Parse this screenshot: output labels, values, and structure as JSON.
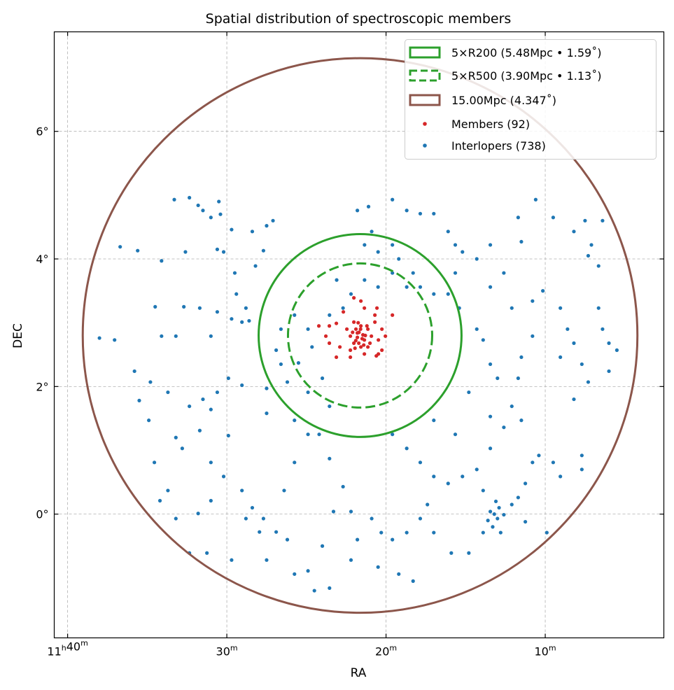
{
  "chart_data": {
    "type": "scatter",
    "title": "Spatial distribution of spectroscopic members",
    "xlabel": "RA",
    "ylabel": "DEC",
    "x_units": "RA minutes past 11h (axis inverted, increasing to the left)",
    "y_units": "degrees",
    "xlim": [
      40.84,
      2.55
    ],
    "ylim": [
      -1.94,
      7.56
    ],
    "grid": true,
    "x_ticks": [
      {
        "value": 40,
        "parts": [
          [
            "11",
            "h"
          ],
          [
            "40",
            "m"
          ]
        ]
      },
      {
        "value": 30,
        "parts": [
          [
            "30",
            "m"
          ]
        ]
      },
      {
        "value": 20,
        "parts": [
          [
            "20",
            "m"
          ]
        ]
      },
      {
        "value": 10,
        "parts": [
          [
            "10",
            "m"
          ]
        ]
      }
    ],
    "y_ticks": [
      {
        "value": 0,
        "label": "0°"
      },
      {
        "value": 2,
        "label": "2°"
      },
      {
        "value": 4,
        "label": "4°"
      },
      {
        "value": 6,
        "label": "6°"
      }
    ],
    "center": {
      "ra_min": 21.63,
      "dec": 2.8
    },
    "circles": [
      {
        "name": "5×R200 (5.48Mpc • 1.59˚)",
        "radius_deg": 1.59,
        "color": "#2ca02c",
        "style": "solid"
      },
      {
        "name": "5×R500 (3.90Mpc • 1.13˚)",
        "radius_deg": 1.13,
        "color": "#2ca02c",
        "style": "dashed"
      },
      {
        "name": "15.00Mpc (4.347˚)",
        "radius_deg": 4.347,
        "color": "#8c564b",
        "style": "solid"
      }
    ],
    "legend_position": "top-right",
    "series": [
      {
        "name": "Members (92)",
        "color": "#d62728",
        "points": [
          [
            22.68,
            3.17
          ],
          [
            22.02,
            3.39
          ],
          [
            21.58,
            3.34
          ],
          [
            21.36,
            3.23
          ],
          [
            20.57,
            3.23
          ],
          [
            19.6,
            3.12
          ],
          [
            23.56,
            2.95
          ],
          [
            23.12,
            2.99
          ],
          [
            22.46,
            2.9
          ],
          [
            22.02,
            3.01
          ],
          [
            21.58,
            2.95
          ],
          [
            21.14,
            2.9
          ],
          [
            20.7,
            3.01
          ],
          [
            20.26,
            2.9
          ],
          [
            22.24,
            2.79
          ],
          [
            21.8,
            2.77
          ],
          [
            21.36,
            2.73
          ],
          [
            20.92,
            2.79
          ],
          [
            20.48,
            2.73
          ],
          [
            20.04,
            2.79
          ],
          [
            23.56,
            2.68
          ],
          [
            22.9,
            2.62
          ],
          [
            22.02,
            2.68
          ],
          [
            21.58,
            2.62
          ],
          [
            21.14,
            2.62
          ],
          [
            20.48,
            2.51
          ],
          [
            23.12,
            2.46
          ],
          [
            22.24,
            2.46
          ],
          [
            21.36,
            2.51
          ],
          [
            20.61,
            2.48
          ],
          [
            20.26,
            2.57
          ],
          [
            21.8,
            2.84
          ],
          [
            21.71,
            2.68
          ],
          [
            21.45,
            2.81
          ],
          [
            21.89,
            2.9
          ],
          [
            24.22,
            2.95
          ],
          [
            23.78,
            2.79
          ],
          [
            22.24,
            2.57
          ],
          [
            21.01,
            2.68
          ],
          [
            20.7,
            3.12
          ],
          [
            21.7,
            2.85
          ],
          [
            21.5,
            2.75
          ],
          [
            21.9,
            2.72
          ],
          [
            21.6,
            2.9
          ],
          [
            21.3,
            2.8
          ],
          [
            22.1,
            2.85
          ],
          [
            21.2,
            2.95
          ],
          [
            21.95,
            2.6
          ],
          [
            21.4,
            2.65
          ],
          [
            21.75,
            3.0
          ]
        ]
      },
      {
        "name": "Interlopers (738)",
        "color": "#1f77b4",
        "points": [
          [
            33.3,
            4.93
          ],
          [
            32.35,
            4.96
          ],
          [
            31.8,
            4.84
          ],
          [
            31.5,
            4.76
          ],
          [
            31.0,
            4.65
          ],
          [
            30.4,
            4.7
          ],
          [
            29.7,
            4.46
          ],
          [
            28.4,
            4.43
          ],
          [
            27.5,
            4.52
          ],
          [
            27.1,
            4.6
          ],
          [
            36.7,
            4.19
          ],
          [
            35.6,
            4.13
          ],
          [
            34.1,
            3.97
          ],
          [
            32.6,
            4.11
          ],
          [
            30.6,
            4.15
          ],
          [
            30.2,
            4.11
          ],
          [
            29.5,
            3.78
          ],
          [
            28.2,
            3.89
          ],
          [
            27.7,
            4.13
          ],
          [
            34.5,
            3.25
          ],
          [
            32.7,
            3.25
          ],
          [
            34.1,
            2.79
          ],
          [
            33.2,
            2.79
          ],
          [
            31.7,
            3.23
          ],
          [
            30.6,
            3.17
          ],
          [
            31.0,
            2.79
          ],
          [
            29.4,
            3.45
          ],
          [
            29.05,
            3.01
          ],
          [
            28.8,
            3.23
          ],
          [
            28.6,
            3.03
          ],
          [
            29.7,
            3.06
          ],
          [
            38.0,
            2.76
          ],
          [
            37.05,
            2.73
          ],
          [
            35.8,
            2.24
          ],
          [
            34.8,
            2.07
          ],
          [
            33.7,
            1.91
          ],
          [
            32.35,
            1.69
          ],
          [
            31.5,
            1.8
          ],
          [
            31.0,
            1.64
          ],
          [
            30.6,
            1.91
          ],
          [
            29.9,
            2.13
          ],
          [
            29.05,
            2.02
          ],
          [
            27.5,
            1.97
          ],
          [
            26.9,
            2.57
          ],
          [
            26.6,
            2.9
          ],
          [
            25.75,
            3.12
          ],
          [
            24.9,
            2.9
          ],
          [
            24.65,
            2.62
          ],
          [
            26.6,
            2.35
          ],
          [
            25.5,
            2.37
          ],
          [
            27.5,
            1.58
          ],
          [
            26.2,
            2.07
          ],
          [
            25.75,
            1.47
          ],
          [
            24.9,
            1.91
          ],
          [
            23.55,
            1.69
          ],
          [
            24.0,
            2.13
          ],
          [
            35.5,
            1.78
          ],
          [
            34.9,
            1.47
          ],
          [
            33.2,
            1.2
          ],
          [
            31.7,
            1.31
          ],
          [
            32.8,
            1.03
          ],
          [
            29.9,
            1.23
          ],
          [
            31.0,
            0.81
          ],
          [
            30.2,
            0.59
          ],
          [
            29.05,
            0.37
          ],
          [
            28.4,
            0.1
          ],
          [
            27.7,
            -0.07
          ],
          [
            26.9,
            -0.28
          ],
          [
            27.5,
            -0.72
          ],
          [
            28.8,
            -0.07
          ],
          [
            27.95,
            -0.28
          ],
          [
            29.7,
            -0.72
          ],
          [
            31.25,
            -0.61
          ],
          [
            32.35,
            -0.61
          ],
          [
            33.2,
            -0.07
          ],
          [
            33.7,
            0.37
          ],
          [
            34.55,
            0.81
          ],
          [
            34.2,
            0.21
          ],
          [
            31.8,
            0.01
          ],
          [
            31.0,
            0.21
          ],
          [
            26.4,
            0.37
          ],
          [
            25.75,
            0.81
          ],
          [
            24.9,
            1.25
          ],
          [
            24.2,
            1.25
          ],
          [
            23.55,
            0.87
          ],
          [
            22.7,
            0.43
          ],
          [
            22.2,
            0.04
          ],
          [
            21.8,
            -0.4
          ],
          [
            20.9,
            -0.07
          ],
          [
            20.5,
            -0.83
          ],
          [
            22.2,
            -0.72
          ],
          [
            23.55,
            -1.16
          ],
          [
            24.9,
            -0.89
          ],
          [
            25.75,
            -0.94
          ],
          [
            26.2,
            -0.4
          ],
          [
            24.0,
            -0.5
          ],
          [
            23.3,
            0.04
          ],
          [
            20.9,
            4.43
          ],
          [
            21.8,
            4.76
          ],
          [
            21.1,
            4.82
          ],
          [
            19.6,
            4.93
          ],
          [
            18.7,
            4.76
          ],
          [
            17.85,
            4.71
          ],
          [
            17.0,
            4.71
          ],
          [
            16.1,
            4.43
          ],
          [
            15.65,
            4.22
          ],
          [
            15.2,
            4.11
          ],
          [
            14.3,
            4.0
          ],
          [
            13.45,
            4.22
          ],
          [
            11.7,
            4.65
          ],
          [
            11.5,
            4.27
          ],
          [
            10.6,
            4.93
          ],
          [
            9.5,
            4.65
          ],
          [
            8.2,
            4.43
          ],
          [
            7.5,
            4.6
          ],
          [
            6.4,
            4.6
          ],
          [
            7.1,
            4.22
          ],
          [
            7.3,
            4.05
          ],
          [
            6.65,
            3.89
          ],
          [
            21.35,
            4.22
          ],
          [
            20.5,
            4.11
          ],
          [
            19.6,
            4.22
          ],
          [
            19.2,
            4.0
          ],
          [
            18.3,
            3.78
          ],
          [
            17.85,
            3.56
          ],
          [
            17.0,
            3.45
          ],
          [
            16.1,
            3.45
          ],
          [
            15.65,
            3.78
          ],
          [
            15.4,
            3.23
          ],
          [
            14.3,
            2.9
          ],
          [
            13.9,
            2.73
          ],
          [
            13.45,
            3.56
          ],
          [
            12.6,
            3.78
          ],
          [
            12.1,
            3.23
          ],
          [
            10.8,
            3.34
          ],
          [
            10.15,
            3.5
          ],
          [
            9.05,
            3.23
          ],
          [
            8.6,
            2.9
          ],
          [
            8.2,
            2.68
          ],
          [
            7.7,
            2.35
          ],
          [
            7.3,
            2.07
          ],
          [
            8.2,
            1.8
          ],
          [
            6.65,
            3.23
          ],
          [
            6.4,
            2.9
          ],
          [
            6.0,
            2.68
          ],
          [
            6.0,
            2.24
          ],
          [
            5.5,
            2.57
          ],
          [
            9.05,
            2.46
          ],
          [
            10.8,
            2.79
          ],
          [
            11.5,
            2.46
          ],
          [
            11.7,
            2.13
          ],
          [
            13.0,
            2.13
          ],
          [
            13.45,
            2.35
          ],
          [
            14.8,
            1.91
          ],
          [
            23.1,
            3.67
          ],
          [
            22.2,
            3.45
          ],
          [
            21.35,
            3.67
          ],
          [
            20.5,
            3.56
          ],
          [
            19.6,
            3.78
          ],
          [
            18.7,
            3.56
          ],
          [
            23.55,
            3.12
          ],
          [
            22.7,
            3.23
          ],
          [
            19.6,
            1.25
          ],
          [
            18.7,
            1.03
          ],
          [
            17.85,
            0.81
          ],
          [
            17.0,
            0.59
          ],
          [
            16.1,
            0.48
          ],
          [
            15.2,
            0.59
          ],
          [
            14.3,
            0.7
          ],
          [
            13.9,
            0.37
          ],
          [
            13.45,
            0.04
          ],
          [
            13.0,
            -0.07
          ],
          [
            12.8,
            -0.29
          ],
          [
            12.6,
            -0.01
          ],
          [
            12.1,
            0.15
          ],
          [
            11.7,
            0.26
          ],
          [
            11.25,
            0.48
          ],
          [
            10.8,
            0.81
          ],
          [
            10.4,
            0.92
          ],
          [
            9.5,
            0.81
          ],
          [
            9.05,
            0.59
          ],
          [
            7.7,
            0.92
          ],
          [
            7.7,
            0.7
          ],
          [
            11.25,
            -0.12
          ],
          [
            9.9,
            -0.29
          ],
          [
            13.9,
            -0.29
          ],
          [
            14.8,
            -0.61
          ],
          [
            15.9,
            -0.61
          ],
          [
            17.0,
            -0.29
          ],
          [
            17.85,
            -0.07
          ],
          [
            18.7,
            -0.29
          ],
          [
            19.6,
            -0.4
          ],
          [
            19.2,
            -0.94
          ],
          [
            18.3,
            -1.05
          ],
          [
            20.3,
            -0.29
          ],
          [
            17.4,
            0.15
          ],
          [
            17.0,
            1.47
          ],
          [
            15.65,
            1.25
          ],
          [
            13.45,
            1.53
          ],
          [
            12.1,
            1.69
          ],
          [
            12.6,
            1.36
          ],
          [
            11.5,
            1.47
          ],
          [
            13.45,
            1.03
          ],
          [
            13.2,
            0.0
          ],
          [
            13.6,
            -0.1
          ],
          [
            12.9,
            0.1
          ],
          [
            13.3,
            -0.2
          ],
          [
            13.1,
            0.2
          ],
          [
            30.5,
            4.9
          ],
          [
            24.5,
            -1.2
          ]
        ]
      }
    ]
  }
}
